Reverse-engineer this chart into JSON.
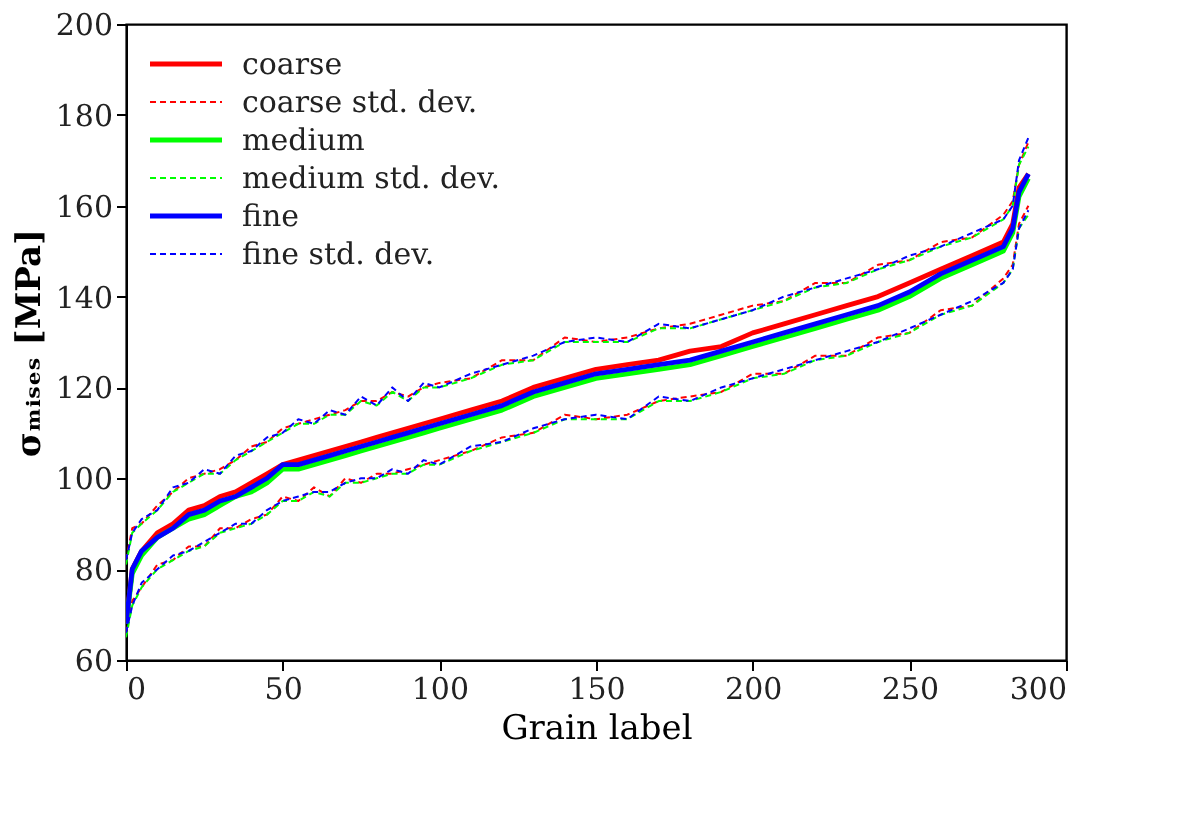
{
  "chart_data": {
    "type": "line",
    "xlabel": "Grain label",
    "ylabel": "σₘᵢₛₑₛ [MPa]",
    "x": [
      0,
      2,
      5,
      10,
      15,
      20,
      25,
      30,
      35,
      40,
      45,
      50,
      55,
      60,
      65,
      70,
      75,
      80,
      85,
      90,
      95,
      100,
      110,
      120,
      130,
      140,
      150,
      160,
      170,
      180,
      190,
      200,
      210,
      220,
      230,
      240,
      250,
      260,
      270,
      280,
      283,
      285,
      288
    ],
    "xlim": [
      0,
      300
    ],
    "xticks": [
      0,
      50,
      100,
      150,
      200,
      250,
      300
    ],
    "ylim": [
      60,
      200
    ],
    "yticks": [
      60,
      80,
      100,
      120,
      140,
      160,
      180,
      200
    ],
    "grid": false,
    "legend": "top left",
    "series": [
      {
        "name": "coarse",
        "color": "#ff0000",
        "line_style": "solid",
        "values": [
          68,
          80,
          84,
          88,
          90,
          93,
          94,
          96,
          97,
          99,
          101,
          103,
          104,
          105,
          106,
          107,
          108,
          109,
          110,
          111,
          112,
          113,
          115,
          117,
          120,
          122,
          124,
          125,
          126,
          128,
          129,
          132,
          134,
          136,
          138,
          140,
          143,
          146,
          149,
          152,
          156,
          164,
          167
        ]
      },
      {
        "name": "coarse std. dev.",
        "color": "#ff0000",
        "line_style": "dashed",
        "values": [
          82,
          89,
          90,
          94,
          97,
          100,
          101,
          102,
          104,
          107,
          108,
          111,
          112,
          113,
          114,
          115,
          117,
          117,
          119,
          118,
          120,
          121,
          122,
          126,
          126,
          131,
          130,
          131,
          133,
          134,
          136,
          138,
          139,
          143,
          143,
          147,
          148,
          152,
          153,
          158,
          161,
          169,
          174
        ]
      },
      {
        "color": "#ff0000",
        "line_style": "dashed",
        "values": [
          66,
          73,
          76,
          81,
          82,
          85,
          85,
          89,
          89,
          91,
          92,
          96,
          95,
          98,
          96,
          100,
          99,
          101,
          101,
          102,
          103,
          104,
          106,
          109,
          110,
          114,
          113,
          114,
          117,
          118,
          119,
          123,
          123,
          127,
          127,
          131,
          132,
          137,
          138,
          144,
          147,
          156,
          160
        ]
      },
      {
        "name": "medium",
        "color": "#00ff00",
        "line_style": "solid",
        "values": [
          68,
          79,
          83,
          87,
          89,
          91,
          92,
          94,
          96,
          97,
          99,
          102,
          102,
          103,
          104,
          105,
          106,
          107,
          108,
          109,
          110,
          111,
          113,
          115,
          118,
          120,
          122,
          123,
          124,
          125,
          127,
          129,
          131,
          133,
          135,
          137,
          140,
          144,
          147,
          150,
          154,
          162,
          166
        ]
      },
      {
        "name": "medium std. dev.",
        "color": "#00ff00",
        "line_style": "dashed",
        "values": [
          81,
          88,
          90,
          93,
          97,
          99,
          101,
          101,
          104,
          106,
          108,
          110,
          112,
          112,
          114,
          114,
          117,
          116,
          119,
          117,
          120,
          120,
          122,
          125,
          126,
          130,
          130,
          130,
          133,
          133,
          135,
          137,
          139,
          142,
          143,
          146,
          148,
          151,
          153,
          157,
          160,
          169,
          173
        ]
      },
      {
        "color": "#00ff00",
        "line_style": "dashed",
        "values": [
          65,
          72,
          76,
          80,
          82,
          84,
          85,
          88,
          89,
          90,
          92,
          95,
          95,
          97,
          96,
          99,
          99,
          100,
          101,
          101,
          103,
          103,
          106,
          108,
          110,
          113,
          113,
          113,
          117,
          117,
          119,
          122,
          123,
          126,
          127,
          130,
          132,
          136,
          138,
          143,
          146,
          155,
          158
        ]
      },
      {
        "name": "fine",
        "color": "#0000ff",
        "line_style": "solid",
        "values": [
          68,
          80,
          84,
          87,
          89,
          92,
          93,
          95,
          96,
          98,
          100,
          103,
          103,
          104,
          105,
          106,
          107,
          108,
          109,
          110,
          111,
          112,
          114,
          116,
          119,
          121,
          123,
          124,
          125,
          126,
          128,
          130,
          132,
          134,
          136,
          138,
          141,
          145,
          148,
          151,
          155,
          163,
          167
        ]
      },
      {
        "name": "fine std. dev.",
        "color": "#0000ff",
        "line_style": "dashed",
        "values": [
          82,
          88,
          91,
          93,
          98,
          99,
          102,
          101,
          105,
          106,
          109,
          110,
          113,
          112,
          115,
          114,
          118,
          116,
          120,
          117,
          121,
          120,
          123,
          125,
          127,
          130,
          131,
          130,
          134,
          133,
          135,
          137,
          140,
          142,
          144,
          146,
          149,
          151,
          154,
          157,
          160,
          170,
          175
        ]
      },
      {
        "color": "#0000ff",
        "line_style": "dashed",
        "values": [
          66,
          72,
          77,
          80,
          83,
          84,
          86,
          88,
          90,
          90,
          93,
          95,
          96,
          97,
          97,
          99,
          100,
          100,
          102,
          101,
          104,
          103,
          107,
          108,
          111,
          113,
          114,
          113,
          118,
          117,
          120,
          122,
          124,
          126,
          128,
          130,
          133,
          136,
          139,
          143,
          146,
          155,
          159
        ]
      }
    ]
  }
}
